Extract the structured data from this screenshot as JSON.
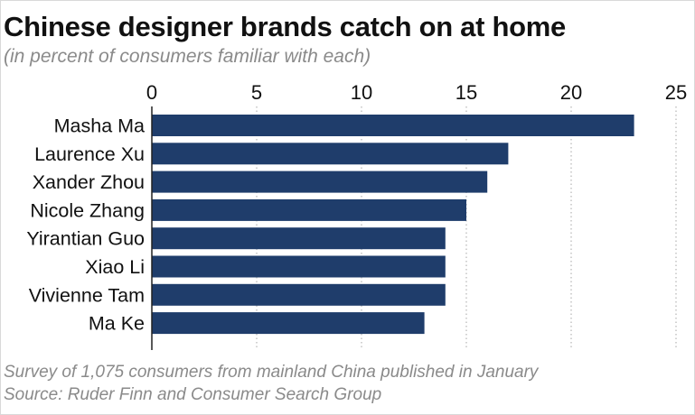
{
  "header": {
    "title": "Chinese designer brands catch on at home",
    "subtitle": "(in percent of consumers familiar with each)"
  },
  "footer": {
    "note": "Survey of 1,075 consumers from mainland China published in January",
    "source": "Source: Ruder Finn and Consumer Search Group"
  },
  "colors": {
    "bar": "#1f3d6b",
    "grid": "#b5b5b5",
    "axis": "#222222",
    "text": "#111111"
  },
  "chart_data": {
    "type": "bar",
    "orientation": "horizontal",
    "title": "Chinese designer brands catch on at home",
    "subtitle": "(in percent of consumers familiar with each)",
    "categories": [
      "Masha Ma",
      "Laurence Xu",
      "Xander Zhou",
      "Nicole Zhang",
      "Yirantian Guo",
      "Xiao Li",
      "Vivienne Tam",
      "Ma Ke"
    ],
    "values": [
      23,
      17,
      16,
      15,
      14,
      14,
      14,
      13
    ],
    "xlim": [
      0,
      25
    ],
    "xticks": [
      0,
      5,
      10,
      15,
      20,
      25
    ],
    "tick_position": "top",
    "grid": "dotted vertical",
    "legend": "none"
  }
}
